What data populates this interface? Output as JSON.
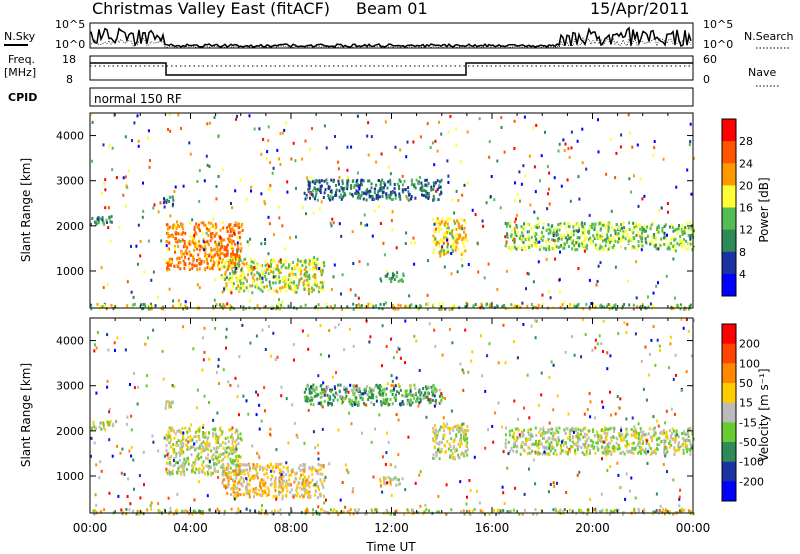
{
  "header": {
    "title": "Christmas Valley East (fitACF)",
    "beam": "Beam 01",
    "date": "15/Apr/2011"
  },
  "side_labels": {
    "nsky": "N.Sky",
    "nsearch": "N.Search",
    "freq": "Freq.",
    "mhz": "[MHz]",
    "nave": "Nave",
    "cpid": "CPID",
    "cpid_text": "normal 150 RF"
  },
  "noise_axis": {
    "top": "10^5",
    "bottom": "10^0"
  },
  "freq_axis": {
    "left": [
      "18",
      "8"
    ],
    "right": [
      "60",
      "0"
    ]
  },
  "colors": {
    "power": [
      "#0000ff",
      "#1a33a0",
      "#2e8b57",
      "#55bb55",
      "#ffff33",
      "#ff9900",
      "#ff5500",
      "#ff0000"
    ],
    "velocity": [
      "#0000ff",
      "#1a33a0",
      "#2e8b57",
      "#66cc33",
      "#bbbbbb",
      "#ffcc00",
      "#ff8800",
      "#ff4400",
      "#ff0000"
    ],
    "frame": "#000000"
  },
  "chart_data": [
    {
      "type": "heatmap",
      "panel": "power",
      "xlabel": "",
      "ylabel": "Slant Range [km]",
      "x_range": [
        "00:00",
        "24:00"
      ],
      "ylim": [
        180,
        4500
      ],
      "y_ticks": [
        "1000",
        "2000",
        "3000",
        "4000"
      ],
      "colorbar": {
        "label": "Power [dB]",
        "ticks": [
          "28",
          "24",
          "20",
          "16",
          "12",
          "8",
          "4"
        ],
        "range": [
          0,
          30
        ]
      },
      "echo_regions": [
        {
          "t_start": 0.0,
          "t_end": 0.9,
          "r_start": 2050,
          "r_end": 2250,
          "value": 10
        },
        {
          "t_start": 2.9,
          "t_end": 3.3,
          "r_start": 2450,
          "r_end": 2700,
          "value": 8
        },
        {
          "t_start": 3.0,
          "t_end": 6.0,
          "r_start": 1050,
          "r_end": 2100,
          "value": 22
        },
        {
          "t_start": 5.2,
          "t_end": 9.3,
          "r_start": 550,
          "r_end": 1300,
          "value": 16
        },
        {
          "t_start": 8.5,
          "t_end": 14.0,
          "r_start": 2600,
          "r_end": 3050,
          "value": 8
        },
        {
          "t_start": 11.5,
          "t_end": 12.5,
          "r_start": 800,
          "r_end": 1000,
          "value": 10
        },
        {
          "t_start": 13.6,
          "t_end": 15.0,
          "r_start": 1400,
          "r_end": 2200,
          "value": 18
        },
        {
          "t_start": 16.5,
          "t_end": 24.0,
          "r_start": 1500,
          "r_end": 2100,
          "value": 14
        }
      ]
    },
    {
      "type": "heatmap",
      "panel": "velocity",
      "xlabel": "Time UT",
      "ylabel": "Slant Range [km]",
      "x_range": [
        "00:00",
        "24:00"
      ],
      "x_ticks": [
        "00:00",
        "04:00",
        "08:00",
        "12:00",
        "16:00",
        "20:00",
        "00:00"
      ],
      "ylim": [
        180,
        4500
      ],
      "y_ticks": [
        "1000",
        "2000",
        "3000",
        "4000"
      ],
      "colorbar": {
        "label": "Velocity [m s⁻¹]",
        "ticks": [
          "200",
          "100",
          "50",
          "15",
          "-15",
          "-50",
          "-100",
          "-200"
        ],
        "range": [
          -250,
          250
        ]
      },
      "echo_regions": [
        {
          "t_start": 0.0,
          "t_end": 0.9,
          "r_start": 2050,
          "r_end": 2250,
          "value": 0
        },
        {
          "t_start": 2.9,
          "t_end": 3.3,
          "r_start": 2450,
          "r_end": 2700,
          "value": 30
        },
        {
          "t_start": 3.0,
          "t_end": 6.0,
          "r_start": 1050,
          "r_end": 2100,
          "value": 0
        },
        {
          "t_start": 5.2,
          "t_end": 9.3,
          "r_start": 550,
          "r_end": 1300,
          "value": 40
        },
        {
          "t_start": 8.5,
          "t_end": 14.0,
          "r_start": 2600,
          "r_end": 3050,
          "value": -80
        },
        {
          "t_start": 11.5,
          "t_end": 12.5,
          "r_start": 800,
          "r_end": 1000,
          "value": 20
        },
        {
          "t_start": 13.6,
          "t_end": 15.0,
          "r_start": 1400,
          "r_end": 2200,
          "value": 0
        },
        {
          "t_start": 16.5,
          "t_end": 24.0,
          "r_start": 1500,
          "r_end": 2100,
          "value": -10
        }
      ]
    }
  ]
}
